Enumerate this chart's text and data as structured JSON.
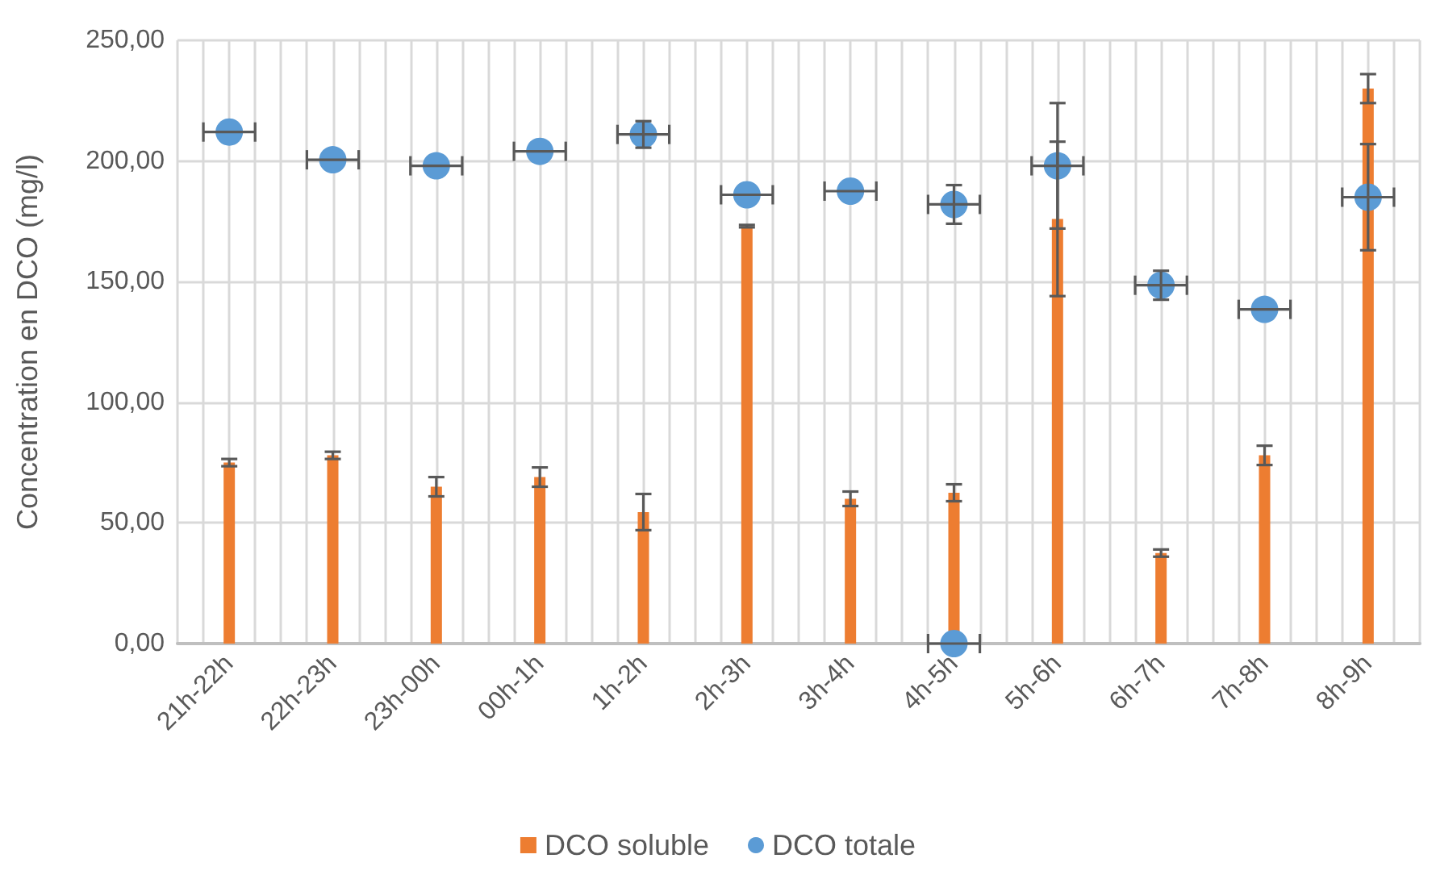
{
  "chart_data": {
    "type": "bar",
    "ylabel": "Concentration en DCO (mg/l)",
    "categories": [
      "21h-22h",
      "22h-23h",
      "23h-00h",
      "00h-1h",
      "1h-2h",
      "2h-3h",
      "3h-4h",
      "4h-5h",
      "5h-6h",
      "6h-7h",
      "7h-8h",
      "8h-9h"
    ],
    "series": [
      {
        "name": "DCO soluble",
        "color": "#ed7d31",
        "values": [
          75,
          78,
          65,
          69,
          54.5,
          173,
          60,
          62.5,
          176,
          37.5,
          78,
          230
        ],
        "errors": [
          1.5,
          1.5,
          4,
          4,
          7.5,
          0.5,
          3,
          3.5,
          32,
          1.5,
          4,
          6
        ]
      },
      {
        "name": "DCO totale",
        "type": "scatter",
        "color": "#5b9bd5",
        "x": [
          "21h-22h",
          "22h-23h",
          "23h-00h",
          "00h-1h",
          "1h-2h",
          "2h-3h",
          "3h-4h",
          "4h-5h",
          "5h-6h",
          "6h-7h",
          "7h-8h",
          "8h-9h",
          "4h-5h"
        ],
        "values": [
          212,
          200.5,
          198,
          204,
          211,
          186,
          187.5,
          182,
          198,
          148.5,
          138.5,
          185,
          0
        ],
        "errors": [
          null,
          null,
          null,
          null,
          5.5,
          null,
          null,
          8,
          26,
          6,
          null,
          22,
          null
        ]
      }
    ],
    "ylim": [
      0,
      250
    ],
    "yticks": [
      {
        "value": 0,
        "label": "0,00"
      },
      {
        "value": 50,
        "label": "50,00"
      },
      {
        "value": 100,
        "label": "100,00"
      },
      {
        "value": 150,
        "label": "150,00"
      },
      {
        "value": 200,
        "label": "200,00"
      },
      {
        "value": 250,
        "label": "250,00"
      }
    ],
    "grid": true,
    "legend": "bottom",
    "marker": "circle"
  }
}
